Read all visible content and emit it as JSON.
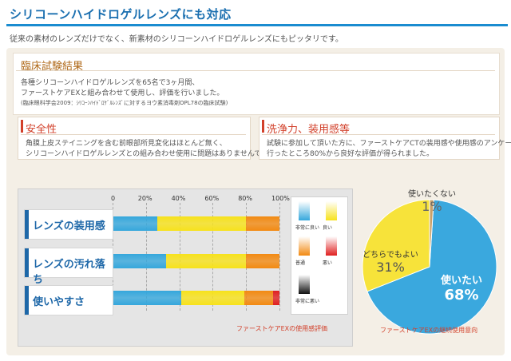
{
  "header": {
    "title": "シリコーンハイドロゲルレンズにも対応",
    "subtitle": "従来の素材のレンズだけでなく、新素材のシリコーンハイドロゲルレンズにもピッタリです。"
  },
  "clinical": {
    "title": "臨床試験結果",
    "line1": "各種シリコーンハイドロゲルレンズを65名で3ヶ月間、",
    "line2": "ファーストケアEXと組み合わせて使用し、評価を行いました。",
    "source": "(臨床眼科学会2009：ｼﾘｺｰﾝﾊｲﾄﾞﾛｹﾞﾙﾚﾝｽﾞに対するヨウ素消毒剤OPL78の臨床試験)"
  },
  "safety": {
    "title": "安全性",
    "line1": "角膜上皮ステイニングを含む前眼部所見変化はほとんど無く、",
    "line2": "シリコーンハイドロゲルレンズとの組み合わせ使用に問題はありませんでした。"
  },
  "cleaning": {
    "title": "洗浄力、装用感等",
    "line1": "試験に参加して頂いた方に、ファーストケアCTの装用感や使用感のアンケートを",
    "line2": "行ったところ80%から良好な評価が得られました。"
  },
  "chart_data": [
    {
      "type": "bar",
      "orientation": "horizontal-stacked",
      "categories": [
        "レンズの装用感",
        "レンズの汚れ落ち",
        "使いやすさ"
      ],
      "series": [
        {
          "name": "非常に良い",
          "color": "#35a7dc",
          "values": [
            27,
            32,
            41
          ]
        },
        {
          "name": "良い",
          "color": "#f7e21b",
          "values": [
            53,
            48,
            38
          ]
        },
        {
          "name": "普通",
          "color": "#f28a12",
          "values": [
            20,
            20,
            17
          ]
        },
        {
          "name": "悪い",
          "color": "#e02020",
          "values": [
            0,
            0,
            4
          ]
        },
        {
          "name": "非常に悪い",
          "color": "#111111",
          "values": [
            0,
            0,
            0
          ]
        }
      ],
      "xticks": [
        "0",
        "20%",
        "40%",
        "60%",
        "80%",
        "100%"
      ],
      "xlim": [
        0,
        100
      ],
      "caption": "ファーストケアEXの使用感評価"
    },
    {
      "type": "pie",
      "slices": [
        {
          "label": "使いたい",
          "value": 68,
          "value_label": "68%",
          "color": "#3aa8de"
        },
        {
          "label": "どちらでもよい",
          "value": 31,
          "value_label": "31%",
          "color": "#f7e33a"
        },
        {
          "label": "使いたくない",
          "value": 1,
          "value_label": "1%",
          "color": "#c9a068"
        }
      ],
      "caption": "ファーストケアEXの継続使用意向"
    }
  ]
}
